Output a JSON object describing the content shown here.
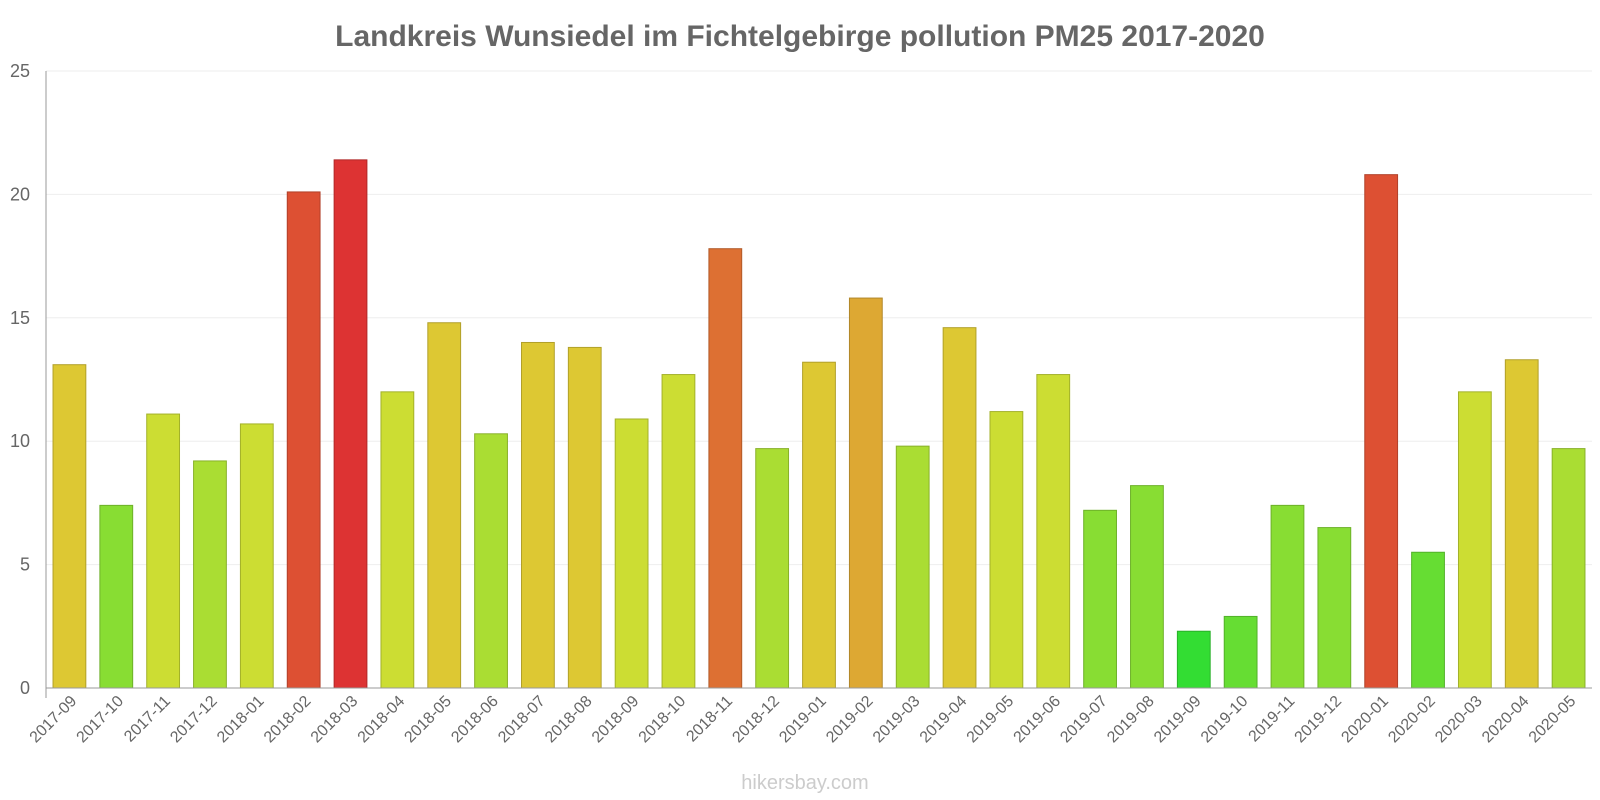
{
  "chart_data": {
    "type": "bar",
    "title": "Landkreis Wunsiedel im Fichtelgebirge pollution PM25 2017-2020",
    "xlabel": "",
    "ylabel": "",
    "ylim": [
      0,
      25
    ],
    "yticks": [
      0,
      5,
      10,
      15,
      20,
      25
    ],
    "grid": true,
    "categories": [
      "2017-09",
      "2017-10",
      "2017-11",
      "2017-12",
      "2018-01",
      "2018-02",
      "2018-03",
      "2018-04",
      "2018-05",
      "2018-06",
      "2018-07",
      "2018-08",
      "2018-09",
      "2018-10",
      "2018-11",
      "2018-12",
      "2019-01",
      "2019-02",
      "2019-03",
      "2019-04",
      "2019-05",
      "2019-06",
      "2019-07",
      "2019-08",
      "2019-09",
      "2019-10",
      "2019-11",
      "2019-12",
      "2020-01",
      "2020-02",
      "2020-03",
      "2020-04",
      "2020-05"
    ],
    "values": [
      13.1,
      7.4,
      11.1,
      9.2,
      10.7,
      20.1,
      21.4,
      12.0,
      14.8,
      10.3,
      14.0,
      13.8,
      10.9,
      12.7,
      17.8,
      9.7,
      13.2,
      15.8,
      9.8,
      14.6,
      11.2,
      12.7,
      7.2,
      8.2,
      2.3,
      2.9,
      7.4,
      6.5,
      20.8,
      5.5,
      12.0,
      13.3,
      9.7
    ],
    "colors": {
      "very_low": "#33dd33",
      "low": "#66dd33",
      "low_mid": "#88dd33",
      "mid": "#aadd33",
      "mid_high": "#ccdd33",
      "high": "#ddc833",
      "very_high": "#dda833",
      "severe": "#dd7033",
      "extreme": "#dd5033",
      "max": "#dd3333"
    }
  },
  "credit": "hikersbay.com"
}
